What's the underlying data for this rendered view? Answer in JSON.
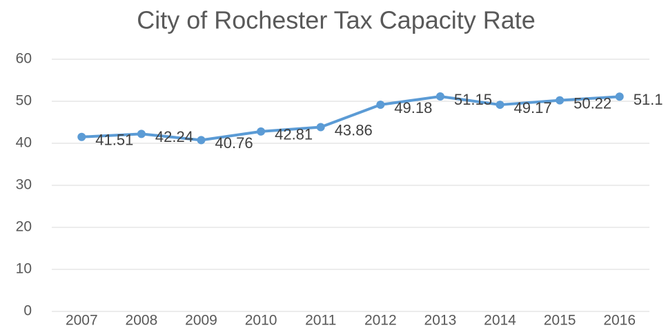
{
  "chart_data": {
    "type": "line",
    "title": "City of Rochester Tax Capacity Rate",
    "categories": [
      "2007",
      "2008",
      "2009",
      "2010",
      "2011",
      "2012",
      "2013",
      "2014",
      "2015",
      "2016"
    ],
    "series": [
      {
        "name": "Tax Capacity Rate",
        "color": "#5b9bd5",
        "values": [
          41.51,
          42.24,
          40.76,
          42.81,
          43.86,
          49.18,
          51.15,
          49.17,
          50.22,
          51.1
        ],
        "value_labels": [
          "41.51",
          "42.24",
          "40.76",
          "42.81",
          "43.86",
          "49.18",
          "51.15",
          "49.17",
          "50.22",
          "51.1"
        ]
      }
    ],
    "ylim": [
      0,
      60
    ],
    "yticks": [
      0,
      10,
      20,
      30,
      40,
      50,
      60
    ],
    "grid": true
  }
}
